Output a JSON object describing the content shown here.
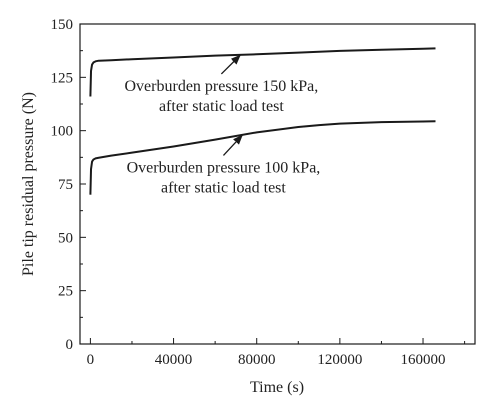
{
  "chart_data": {
    "type": "line",
    "xlabel": "Time (s)",
    "ylabel": "Pile tip residual pressure (N)",
    "xlim": [
      -5000,
      185000
    ],
    "ylim": [
      0,
      150
    ],
    "xticks": [
      0,
      40000,
      80000,
      120000,
      160000
    ],
    "yticks": [
      0,
      25,
      50,
      75,
      100,
      125,
      150
    ],
    "grid": false,
    "legend": "none",
    "series": [
      {
        "x": [
          0,
          300,
          800,
          1500,
          2500,
          4000,
          10000,
          20000,
          40000,
          60000,
          80000,
          100000,
          120000,
          140000,
          160000,
          166000
        ],
        "y": [
          116,
          128,
          131,
          132,
          132.5,
          132.8,
          133,
          133.5,
          134.3,
          135.2,
          135.8,
          136.6,
          137.4,
          137.9,
          138.4,
          138.6
        ],
        "color": "#1a1a1a"
      },
      {
        "x": [
          0,
          300,
          800,
          1500,
          2500,
          4000,
          10000,
          20000,
          40000,
          60000,
          80000,
          100000,
          110000,
          120000,
          140000,
          160000,
          166000
        ],
        "y": [
          70,
          82,
          85.5,
          86.5,
          87,
          87.3,
          88.3,
          89.7,
          92.6,
          95.8,
          99.2,
          101.7,
          102.6,
          103.3,
          104,
          104.3,
          104.4
        ],
        "color": "#1a1a1a"
      }
    ],
    "annotations": [
      {
        "lines": [
          "Overburden pressure 150 kPa,",
          "after static load test"
        ],
        "arrow_to": [
          72000,
          135.3
        ],
        "arrow_from": [
          63000,
          126.6
        ]
      },
      {
        "lines": [
          "Overburden pressure 100 kPa,",
          "after static load test"
        ],
        "arrow_to": [
          73000,
          97.8
        ],
        "arrow_from": [
          64000,
          88.4
        ]
      }
    ]
  }
}
